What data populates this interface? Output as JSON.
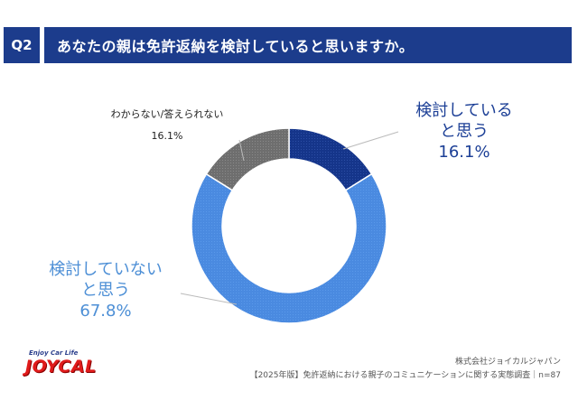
{
  "header": {
    "question_badge": "Q2",
    "question_title": "あなたの親は免許返納を検討していると思いますか。"
  },
  "chart_data": {
    "type": "pie",
    "style": "donut",
    "title": "あなたの親は免許返納を検討していると思いますか。",
    "slices": [
      {
        "label_line1": "検討している",
        "label_line2": "と思う",
        "value": 16.1,
        "pct_text": "16.1%",
        "color": "#1c3f96"
      },
      {
        "label_line1": "検討していない",
        "label_line2": "と思う",
        "value": 67.8,
        "pct_text": "67.8%",
        "color": "#4d8fe0"
      },
      {
        "label_line1": "わからない/答えられない",
        "label_line2": "",
        "value": 16.1,
        "pct_text": "16.1%",
        "color": "#707070"
      }
    ],
    "start_angle_deg": 0,
    "direction": "clockwise"
  },
  "footer": {
    "company": "株式会社ジョイカルジャパン",
    "survey": "【2025年版】免許返納における親子のコミュニケーションに関する実態調査｜n=87"
  },
  "logo": {
    "tagline": "Enjoy Car Life",
    "wordmark": "JOYCAL"
  }
}
